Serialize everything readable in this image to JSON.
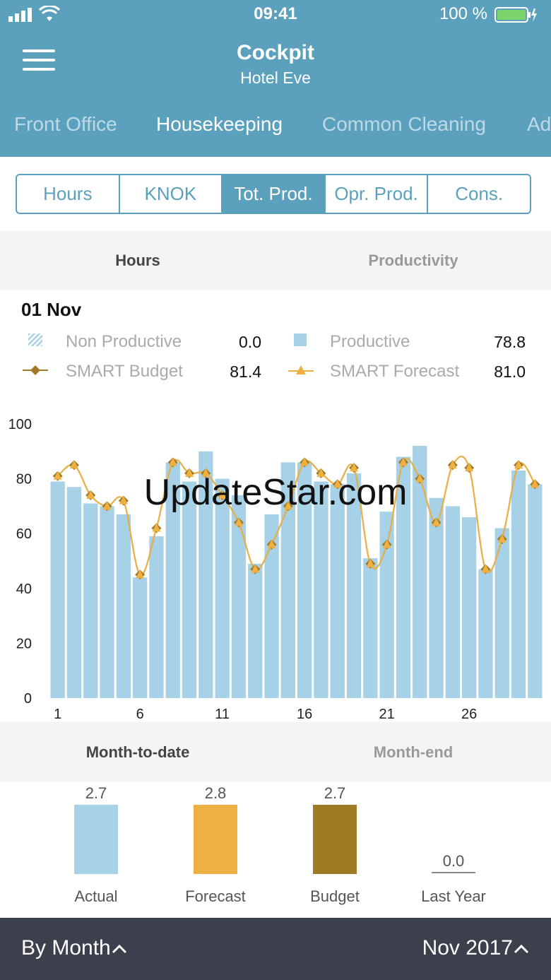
{
  "status_bar": {
    "time": "09:41",
    "battery": "100 %"
  },
  "header": {
    "title": "Cockpit",
    "subtitle": "Hotel Eve"
  },
  "dept_tabs": [
    "Front Office",
    "Housekeeping",
    "Common Cleaning",
    "Ad"
  ],
  "dept_active": 1,
  "segments": [
    "Hours",
    "KNOK",
    "Tot. Prod.",
    "Opr. Prod.",
    "Cons."
  ],
  "segment_active": 2,
  "view_tabs": {
    "hours": "Hours",
    "productivity": "Productivity"
  },
  "date": "01 Nov",
  "legend": {
    "non_productive": {
      "label": "Non Productive",
      "value": "0.0"
    },
    "productive": {
      "label": "Productive",
      "value": "78.8"
    },
    "smart_budget": {
      "label": "SMART Budget",
      "value": "81.4"
    },
    "smart_forecast": {
      "label": "SMART Forecast",
      "value": "81.0"
    }
  },
  "colors": {
    "header": "#5ba1bd",
    "bar": "#a7d1e6",
    "forecast": "#eeb043",
    "budget": "#a07a25",
    "footer": "#3c404c"
  },
  "chart_data": {
    "type": "bar",
    "x": [
      1,
      2,
      3,
      4,
      5,
      6,
      7,
      8,
      9,
      10,
      11,
      12,
      13,
      14,
      15,
      16,
      17,
      18,
      19,
      20,
      21,
      22,
      23,
      24,
      25,
      26,
      27,
      28,
      29,
      30
    ],
    "xticks": [
      "1",
      "6",
      "11",
      "16",
      "21",
      "26"
    ],
    "yticks": [
      "0",
      "20",
      "40",
      "60",
      "80",
      "100"
    ],
    "ylim": [
      0,
      100
    ],
    "series": [
      {
        "name": "Productive",
        "type": "bar",
        "values": [
          79,
          77,
          71,
          70,
          67,
          44,
          59,
          86,
          79,
          90,
          80,
          74,
          49,
          67,
          86,
          86,
          79,
          78,
          82,
          51,
          68,
          88,
          92,
          73,
          70,
          66,
          47,
          62,
          83,
          78
        ]
      },
      {
        "name": "SMART Budget",
        "type": "line",
        "values": [
          81,
          85,
          74,
          70,
          72,
          45,
          62,
          86,
          82,
          82,
          74,
          64,
          47,
          56,
          70,
          86,
          82,
          78,
          84,
          49,
          56,
          86,
          80,
          64,
          85,
          84,
          47,
          58,
          85,
          78
        ]
      },
      {
        "name": "SMART Forecast",
        "type": "line",
        "values": [
          81,
          85,
          74,
          70,
          72,
          45,
          62,
          86,
          82,
          82,
          74,
          64,
          47,
          56,
          70,
          86,
          82,
          78,
          84,
          49,
          56,
          86,
          80,
          64,
          85,
          84,
          47,
          58,
          85,
          78
        ]
      }
    ]
  },
  "bottom_tabs": {
    "mtd": "Month-to-date",
    "month_end": "Month-end"
  },
  "summary": [
    {
      "label": "Actual",
      "value": "2.7"
    },
    {
      "label": "Forecast",
      "value": "2.8"
    },
    {
      "label": "Budget",
      "value": "2.7"
    },
    {
      "label": "Last Year",
      "value": "0.0"
    }
  ],
  "footer": {
    "left": "By Month",
    "right": "Nov 2017"
  },
  "watermark": "UpdateStar.com"
}
